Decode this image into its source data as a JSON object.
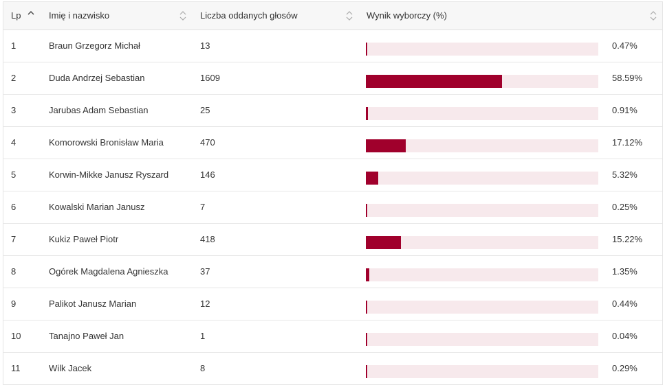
{
  "headers": {
    "lp": "Lp",
    "name": "Imię i nazwisko",
    "votes": "Liczba oddanych głosów",
    "result": "Wynik wyborczy (%)"
  },
  "colors": {
    "bar": "#a0002c",
    "bar_track": "#f7e9ec"
  },
  "rows": [
    {
      "lp": "1",
      "name": "Braun Grzegorz Michał",
      "votes": "13",
      "pct_label": "0.47%",
      "pct": 0.47
    },
    {
      "lp": "2",
      "name": "Duda Andrzej Sebastian",
      "votes": "1609",
      "pct_label": "58.59%",
      "pct": 58.59
    },
    {
      "lp": "3",
      "name": "Jarubas Adam Sebastian",
      "votes": "25",
      "pct_label": "0.91%",
      "pct": 0.91
    },
    {
      "lp": "4",
      "name": "Komorowski Bronisław Maria",
      "votes": "470",
      "pct_label": "17.12%",
      "pct": 17.12
    },
    {
      "lp": "5",
      "name": "Korwin-Mikke Janusz Ryszard",
      "votes": "146",
      "pct_label": "5.32%",
      "pct": 5.32
    },
    {
      "lp": "6",
      "name": "Kowalski Marian Janusz",
      "votes": "7",
      "pct_label": "0.25%",
      "pct": 0.25
    },
    {
      "lp": "7",
      "name": "Kukiz Paweł Piotr",
      "votes": "418",
      "pct_label": "15.22%",
      "pct": 15.22
    },
    {
      "lp": "8",
      "name": "Ogórek Magdalena Agnieszka",
      "votes": "37",
      "pct_label": "1.35%",
      "pct": 1.35
    },
    {
      "lp": "9",
      "name": "Palikot Janusz Marian",
      "votes": "12",
      "pct_label": "0.44%",
      "pct": 0.44
    },
    {
      "lp": "10",
      "name": "Tanajno Paweł Jan",
      "votes": "1",
      "pct_label": "0.04%",
      "pct": 0.04
    },
    {
      "lp": "11",
      "name": "Wilk Jacek",
      "votes": "8",
      "pct_label": "0.29%",
      "pct": 0.29
    }
  ]
}
